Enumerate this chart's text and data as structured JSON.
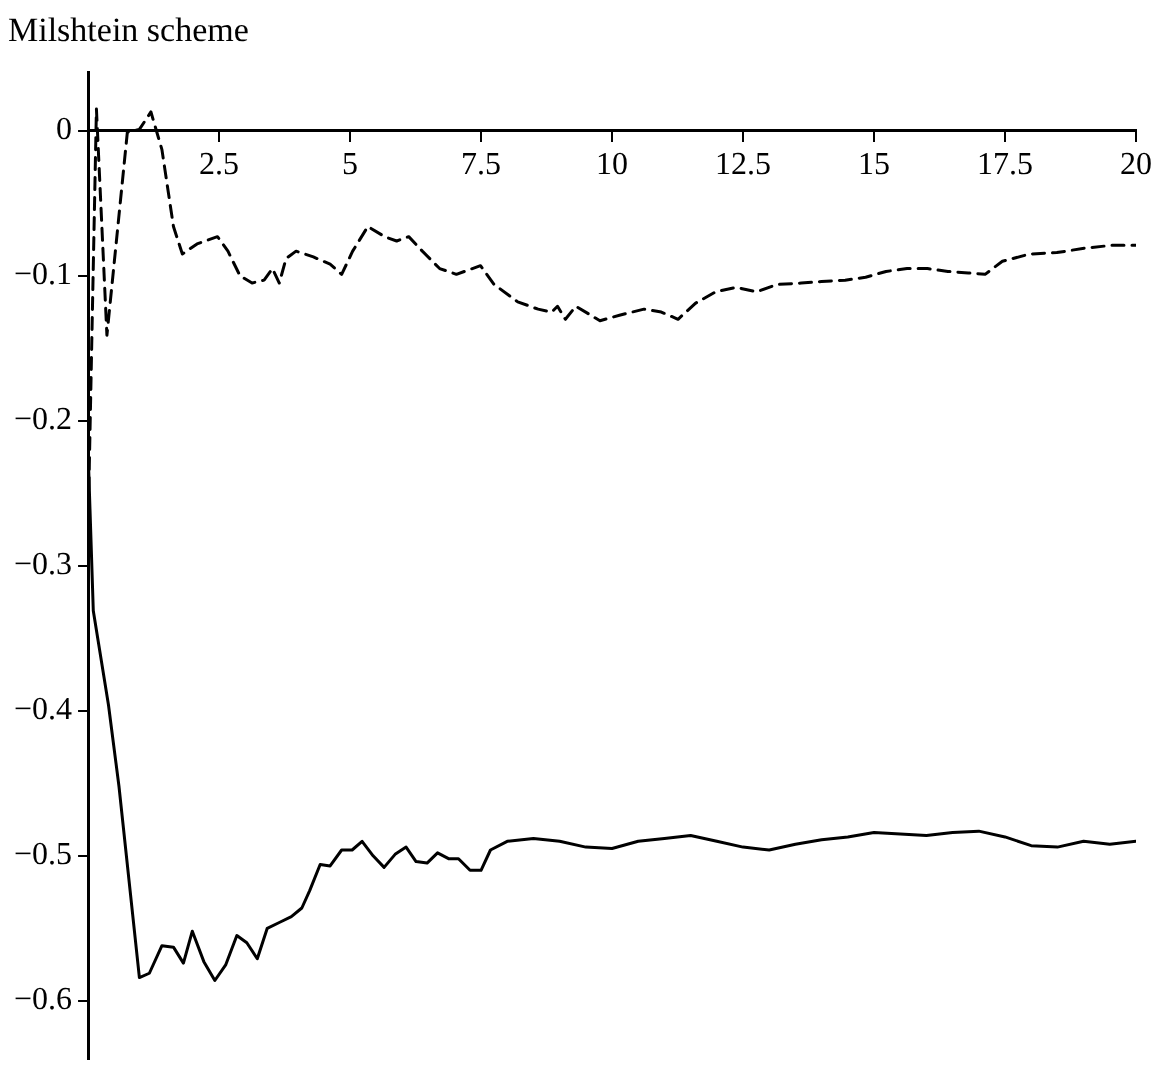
{
  "chart_data": {
    "type": "line",
    "title": "Milshtein scheme",
    "xlim": [
      0,
      20
    ],
    "ylim": [
      -0.64,
      0.04
    ],
    "xticks": [
      2.5,
      5,
      7.5,
      10,
      12.5,
      15,
      17.5,
      20
    ],
    "yticks": [
      0,
      {
        "value": -0.1,
        "label": "−0.1"
      },
      {
        "value": -0.2,
        "label": "−0.2"
      },
      {
        "value": -0.3,
        "label": "−0.3"
      },
      {
        "value": -0.4,
        "label": "−0.4"
      },
      {
        "value": -0.5,
        "label": "−0.5"
      },
      {
        "value": -0.6,
        "label": "−0.6"
      }
    ],
    "grid": false,
    "legend": false,
    "marker": "none",
    "series": [
      {
        "color": "#000000",
        "line_style": "solid",
        "x": [
          0,
          0.1,
          0.39,
          0.59,
          0.98,
          1.17,
          1.41,
          1.63,
          1.82,
          1.99,
          2.21,
          2.42,
          2.63,
          2.84,
          3.03,
          3.23,
          3.42,
          3.65,
          3.88,
          4.08,
          4.23,
          4.43,
          4.62,
          4.84,
          5.04,
          5.23,
          5.44,
          5.65,
          5.86,
          6.07,
          6.26,
          6.47,
          6.67,
          6.88,
          7.07,
          7.29,
          7.5,
          7.68,
          8,
          8.5,
          9,
          9.5,
          10,
          10.5,
          11,
          11.5,
          12,
          12.5,
          13,
          13.5,
          14,
          14.5,
          15,
          15.5,
          16,
          16.5,
          17,
          17.5,
          18,
          18.5,
          19,
          19.5,
          20
        ],
        "values": [
          -0.22,
          -0.331,
          -0.396,
          -0.452,
          -0.584,
          -0.581,
          -0.562,
          -0.563,
          -0.574,
          -0.552,
          -0.573,
          -0.586,
          -0.575,
          -0.555,
          -0.56,
          -0.571,
          -0.55,
          -0.546,
          -0.542,
          -0.536,
          -0.524,
          -0.506,
          -0.507,
          -0.496,
          -0.496,
          -0.49,
          -0.5,
          -0.508,
          -0.499,
          -0.494,
          -0.504,
          -0.505,
          -0.498,
          -0.502,
          -0.502,
          -0.51,
          -0.51,
          -0.496,
          -0.49,
          -0.488,
          -0.49,
          -0.494,
          -0.495,
          -0.49,
          -0.488,
          -0.486,
          -0.49,
          -0.494,
          -0.496,
          -0.492,
          -0.489,
          -0.487,
          -0.484,
          -0.485,
          -0.486,
          -0.484,
          -0.483,
          -0.487,
          -0.493,
          -0.494,
          -0.49,
          -0.492,
          -0.49
        ]
      },
      {
        "color": "#000000",
        "line_style": "dashed",
        "x": [
          0,
          0.16,
          0.36,
          0.75,
          0.98,
          1.2,
          1.41,
          1.63,
          1.8,
          2.08,
          2.47,
          2.67,
          2.9,
          3.13,
          3.36,
          3.52,
          3.65,
          3.78,
          3.97,
          4.3,
          4.62,
          4.84,
          5.05,
          5.34,
          5.66,
          5.89,
          6.12,
          6.38,
          6.71,
          7.03,
          7.49,
          7.75,
          8.2,
          8.59,
          8.85,
          8.96,
          9.11,
          9.31,
          9.77,
          10.16,
          10.61,
          10.94,
          11.26,
          11.59,
          11.98,
          12.37,
          12.76,
          13.15,
          13.61,
          14,
          14.45,
          14.84,
          15.23,
          15.63,
          16.02,
          16.41,
          16.8,
          17.12,
          17.45,
          17.97,
          18.49,
          19.01,
          19.53,
          20
        ],
        "values": [
          -0.275,
          0.015,
          -0.141,
          -0.001,
          0.001,
          0.013,
          -0.013,
          -0.066,
          -0.085,
          -0.078,
          -0.073,
          -0.083,
          -0.1,
          -0.105,
          -0.103,
          -0.095,
          -0.105,
          -0.088,
          -0.083,
          -0.087,
          -0.092,
          -0.099,
          -0.083,
          -0.066,
          -0.073,
          -0.076,
          -0.073,
          -0.083,
          -0.095,
          -0.099,
          -0.093,
          -0.106,
          -0.118,
          -0.123,
          -0.125,
          -0.121,
          -0.13,
          -0.121,
          -0.131,
          -0.127,
          -0.123,
          -0.125,
          -0.13,
          -0.119,
          -0.111,
          -0.108,
          -0.111,
          -0.106,
          -0.105,
          -0.104,
          -0.103,
          -0.101,
          -0.097,
          -0.095,
          -0.095,
          -0.097,
          -0.098,
          -0.099,
          -0.09,
          -0.085,
          -0.084,
          -0.081,
          -0.079,
          -0.079
        ]
      }
    ]
  }
}
